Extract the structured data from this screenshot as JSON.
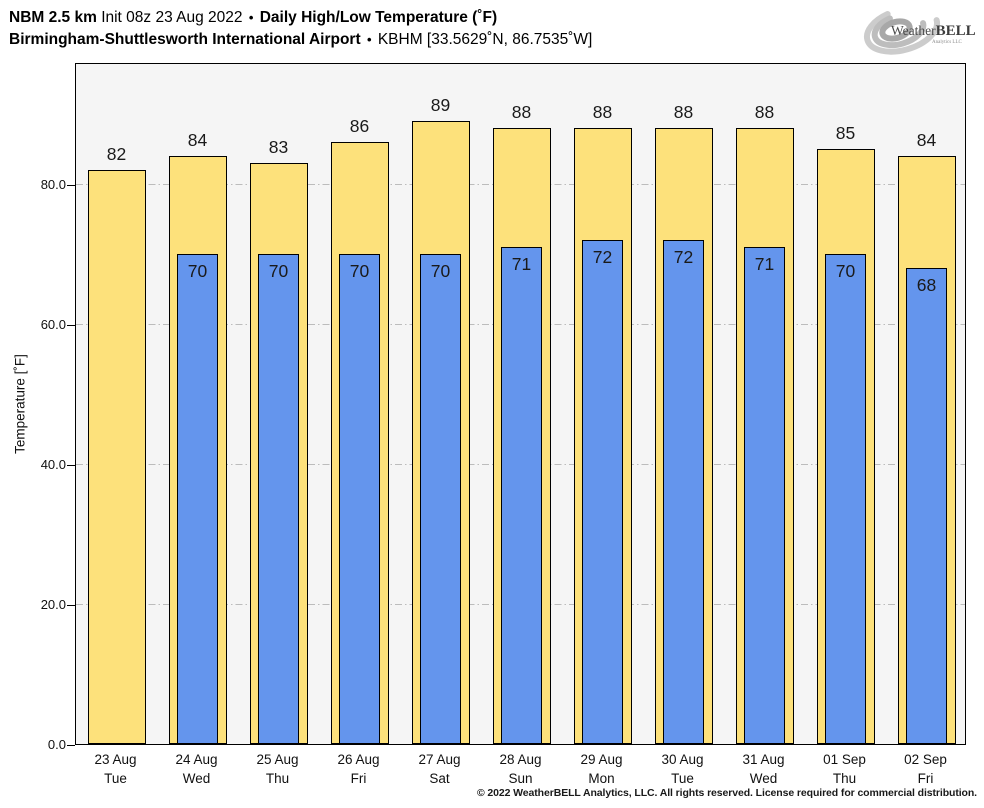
{
  "header": {
    "title": {
      "model": "NBM 2.5 km",
      "init": "Init 08z 23 Aug 2022",
      "bullet": "•",
      "metric": "Daily High/Low Temperature (˚F)"
    },
    "subtitle": {
      "station": "Birmingham-Shuttlesworth International Airport",
      "bullet": "•",
      "station_id": "KBHM [33.5629˚N, 86.7535˚W]"
    }
  },
  "logo": {
    "brand_part1": "Weather",
    "brand_part2": "BELL",
    "brand_sub": "Analytics LLC"
  },
  "chart_data": {
    "type": "bar",
    "title": "Daily High/Low Temperature (˚F)",
    "ylabel": "Temperature [˚F]",
    "ylim": [
      0,
      97.4
    ],
    "yticks": [
      0,
      20,
      40,
      60,
      80
    ],
    "ytick_labels": [
      "0.0",
      "20.0",
      "40.0",
      "60.0",
      "80.0"
    ],
    "grid": true,
    "legend_position": "none",
    "plot_bg": "#f5f5f5",
    "categories": [
      {
        "date": "23 Aug",
        "day": "Tue"
      },
      {
        "date": "24 Aug",
        "day": "Wed"
      },
      {
        "date": "25 Aug",
        "day": "Thu"
      },
      {
        "date": "26 Aug",
        "day": "Fri"
      },
      {
        "date": "27 Aug",
        "day": "Sat"
      },
      {
        "date": "28 Aug",
        "day": "Sun"
      },
      {
        "date": "29 Aug",
        "day": "Mon"
      },
      {
        "date": "30 Aug",
        "day": "Tue"
      },
      {
        "date": "31 Aug",
        "day": "Wed"
      },
      {
        "date": "01 Sep",
        "day": "Thu"
      },
      {
        "date": "02 Sep",
        "day": "Fri"
      }
    ],
    "series": [
      {
        "name": "Daily High",
        "color": "#FDE17B",
        "values": [
          82,
          84,
          83,
          86,
          89,
          88,
          88,
          88,
          88,
          85,
          84
        ]
      },
      {
        "name": "Daily Low",
        "color": "#6495ED",
        "values": [
          null,
          70,
          70,
          70,
          70,
          71,
          72,
          72,
          71,
          70,
          68
        ]
      }
    ]
  },
  "footer": {
    "copyright": "© 2022 WeatherBELL Analytics, LLC. All rights reserved. License required for commercial distribution."
  }
}
